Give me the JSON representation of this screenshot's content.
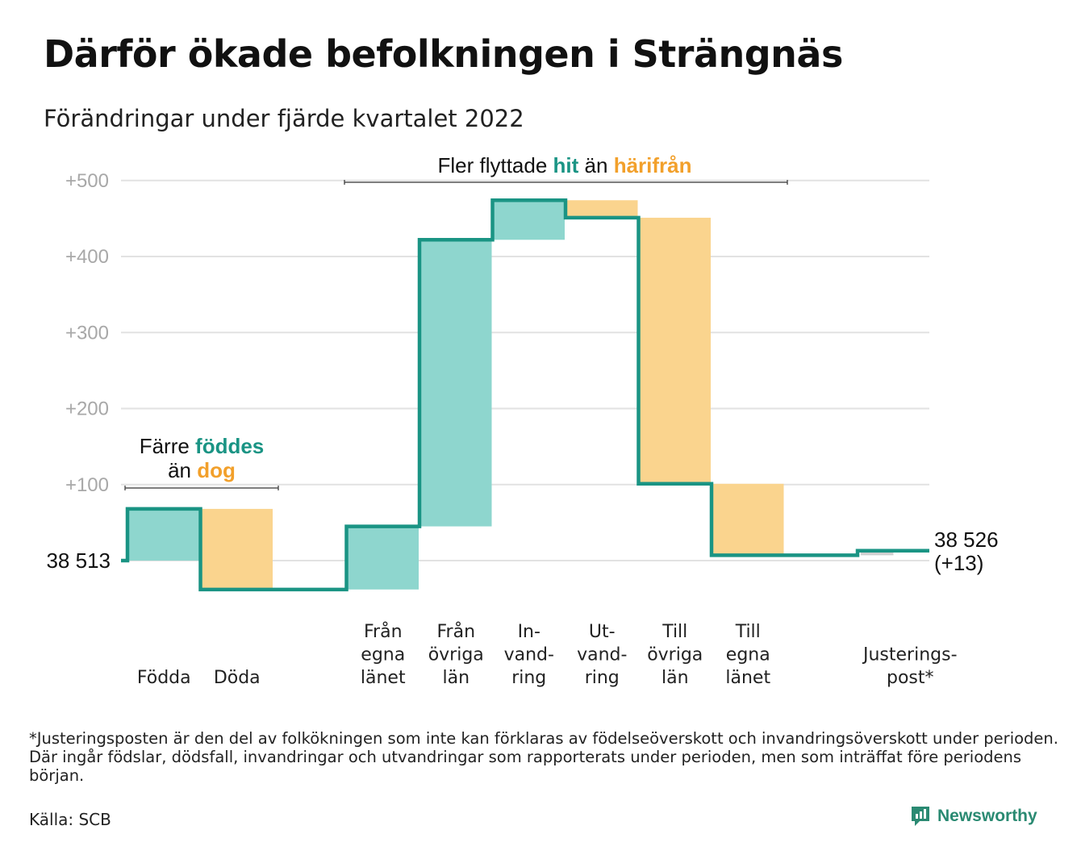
{
  "title": "Därför ökade befolkningen i Strängnäs",
  "subtitle": "Förändringar under fjärde kvartalet 2022",
  "colors": {
    "increase": "#8ed6ce",
    "decrease": "#fad48e",
    "line": "#1a9484",
    "adjustment": "#d0d0d0",
    "accent_teal": "#1a9484",
    "accent_orange": "#f2a02b",
    "grid": "#e2e2e2",
    "tick": "#a8a8a8"
  },
  "annotations": {
    "births": {
      "lead": "Färre ",
      "teal": "föddes",
      "mid": "än ",
      "orange": "dog"
    },
    "migration": {
      "lead": "Fler flyttade ",
      "teal": "hit",
      "mid": " än ",
      "orange": "härifrån"
    }
  },
  "chart_data": {
    "type": "waterfall",
    "baseline_value": 38513,
    "baseline_label": "38 513",
    "end_value": 38526,
    "end_label": [
      "38 526",
      "(+13)"
    ],
    "yrange": [
      -40,
      500
    ],
    "yticks": [
      {
        "value": 100,
        "label": "+100"
      },
      {
        "value": 200,
        "label": "+200"
      },
      {
        "value": 300,
        "label": "+300"
      },
      {
        "value": 400,
        "label": "+400"
      },
      {
        "value": 500,
        "label": "+500"
      }
    ],
    "grid": true,
    "categories": [
      {
        "label": [
          "Födda"
        ],
        "change": 68,
        "kind": "increase"
      },
      {
        "label": [
          "Döda"
        ],
        "change": -106,
        "kind": "decrease"
      },
      {
        "label": [],
        "change": 0,
        "kind": "blank"
      },
      {
        "label": [
          "Från",
          "egna",
          "länet"
        ],
        "change": 83,
        "kind": "increase"
      },
      {
        "label": [
          "Från",
          "övriga",
          "län"
        ],
        "change": 377,
        "kind": "increase"
      },
      {
        "label": [
          "In-",
          "vand-",
          "ring"
        ],
        "change": 52,
        "kind": "increase"
      },
      {
        "label": [
          "Ut-",
          "vand-",
          "ring"
        ],
        "change": -23,
        "kind": "decrease"
      },
      {
        "label": [
          "Till",
          "övriga",
          "län"
        ],
        "change": -350,
        "kind": "decrease"
      },
      {
        "label": [
          "Till",
          "egna",
          "länet"
        ],
        "change": -94,
        "kind": "decrease"
      },
      {
        "label": [],
        "change": 0,
        "kind": "blank"
      },
      {
        "label": [
          "Justerings-",
          "post*"
        ],
        "change": 6,
        "kind": "adjustment"
      }
    ]
  },
  "footnote": "*Justeringsposten är den del av folkökningen som inte kan förklaras av födelseöverskott och invandringsöverskott under perioden. Där ingår födslar, dödsfall, invandringar och utvandringar som rapporterats under perioden, men som inträffat före periodens början.",
  "source": "Källa: SCB",
  "brand": {
    "name": "Newsworthy",
    "icon": "newsworthy-logo-icon"
  }
}
